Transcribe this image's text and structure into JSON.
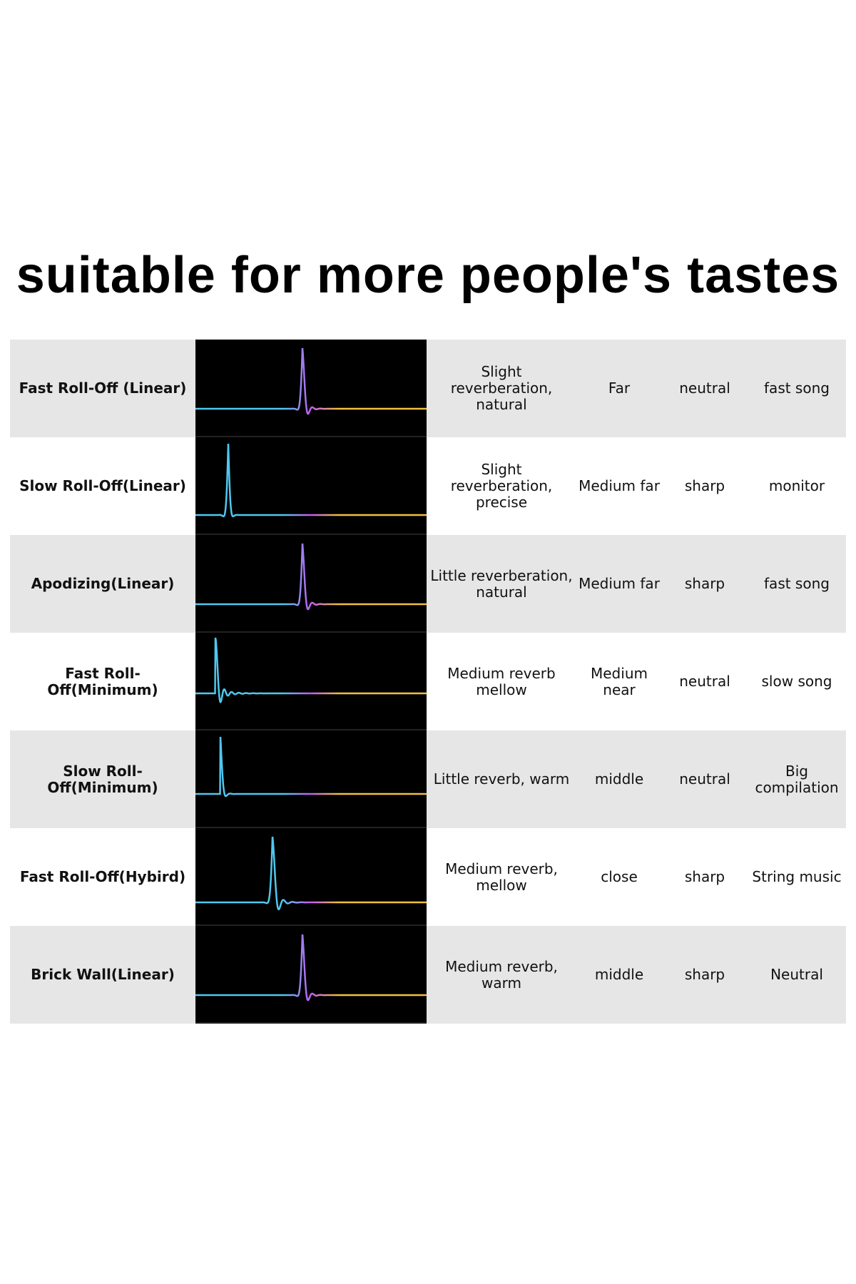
{
  "title": "suitable for more people's tastes",
  "colors": {
    "shade": "#e6e6e6",
    "wave_bg": "#000000",
    "wave_cyan": "#4fc8f0",
    "wave_magenta": "#c45cf0",
    "wave_yellow": "#f0c040"
  },
  "rows": [
    {
      "filter": "Fast Roll-Off (Linear)",
      "reverb": "Slight reverberation, natural",
      "distance": "Far",
      "tone": "neutral",
      "use": "fast song",
      "wave": "linear-center"
    },
    {
      "filter": "Slow Roll-Off(Linear)",
      "reverb": "Slight reverberation, precise",
      "distance": "Medium far",
      "tone": "sharp",
      "use": "monitor",
      "wave": "linear-early"
    },
    {
      "filter": "Apodizing(Linear)",
      "reverb": "Little reverberation, natural",
      "distance": "Medium far",
      "tone": "sharp",
      "use": "fast song",
      "wave": "linear-center"
    },
    {
      "filter": "Fast Roll-Off(Minimum)",
      "reverb": "Medium reverb mellow",
      "distance": "Medium near",
      "tone": "neutral",
      "use": "slow song",
      "wave": "minimum-long"
    },
    {
      "filter": "Slow Roll-Off(Minimum)",
      "reverb": "Little reverb, warm",
      "distance": "middle",
      "tone": "neutral",
      "use": "Big compilation",
      "wave": "minimum-short"
    },
    {
      "filter": "Fast Roll-Off(Hybird)",
      "reverb": "Medium reverb, mellow",
      "distance": "close",
      "tone": "sharp",
      "use": "String music",
      "wave": "hybrid"
    },
    {
      "filter": "Brick Wall(Linear)",
      "reverb": "Medium reverb, warm",
      "distance": "middle",
      "tone": "sharp",
      "use": "Neutral",
      "wave": "linear-center"
    }
  ]
}
